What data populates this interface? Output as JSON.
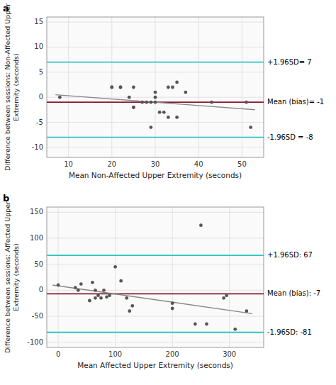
{
  "chart_data": [
    {
      "type": "scatter",
      "title": "a",
      "xlabel": "Mean Non-Affected Upper Extremity (seconds)",
      "ylabel": "Difference between sessions: Non-Affected Upper\nExtremity (seconds)",
      "series": [
        {
          "type": "scatter",
          "color": "#555555",
          "x": [
            8,
            20,
            20,
            22,
            22,
            24,
            25,
            25,
            25,
            27,
            28,
            29,
            29,
            30,
            30,
            30,
            31,
            32,
            33,
            33,
            34,
            35,
            35,
            37,
            43,
            51,
            52
          ],
          "values": [
            0,
            2,
            2,
            2,
            2,
            0,
            -2,
            -2,
            2,
            -1,
            -1,
            -6,
            -1,
            -1,
            1,
            0,
            -3,
            -3,
            2,
            -4,
            2,
            -4,
            3,
            1,
            -1,
            -1,
            -6
          ]
        },
        {
          "type": "line",
          "color": "#888888",
          "x": [
            7,
            53
          ],
          "values": [
            0.5,
            -2.5
          ]
        }
      ],
      "annotations": [
        {
          "text": "+1.96SD= 7",
          "value": 7,
          "color": "#2DC5C5"
        },
        {
          "text": "Mean (bias)= -1",
          "value": -1,
          "color": "#8B1A2E"
        },
        {
          "text": "-1.96SD = -8",
          "value": -8,
          "color": "#2DC5C5"
        }
      ],
      "xlim": [
        5,
        55
      ],
      "ylim": [
        -12,
        16
      ],
      "xticks": [
        10,
        20,
        30,
        40,
        50
      ],
      "yticks": [
        -10,
        -5,
        0,
        5,
        10,
        15
      ],
      "grid": true
    },
    {
      "type": "scatter",
      "title": "b",
      "xlabel": "Mean Affected Upper Extremity (seconds)",
      "ylabel": "Difference between sessions: Affected Upper\nExtremity (seconds)",
      "series": [
        {
          "type": "scatter",
          "color": "#555555",
          "x": [
            0,
            30,
            35,
            40,
            55,
            60,
            65,
            65,
            70,
            75,
            80,
            85,
            90,
            100,
            110,
            120,
            125,
            130,
            200,
            200,
            240,
            250,
            260,
            290,
            295,
            310,
            330
          ],
          "values": [
            10,
            5,
            0,
            12,
            -20,
            15,
            -15,
            0,
            -10,
            -15,
            0,
            -13,
            -10,
            45,
            18,
            -15,
            -40,
            -30,
            -25,
            -35,
            -65,
            125,
            -65,
            -15,
            -10,
            -75,
            -40
          ]
        },
        {
          "type": "line",
          "color": "#888888",
          "x": [
            -10,
            340
          ],
          "values": [
            10,
            -45
          ]
        }
      ],
      "annotations": [
        {
          "text": "+1.96SD: 67",
          "value": 67,
          "color": "#2DC5C5"
        },
        {
          "text": "Mean (bias): -7",
          "value": -7,
          "color": "#8B1A2E"
        },
        {
          "text": "-1.96SD: -81",
          "value": -81,
          "color": "#2DC5C5"
        }
      ],
      "xlim": [
        -20,
        360
      ],
      "ylim": [
        -110,
        160
      ],
      "xticks": [
        0,
        100,
        200,
        300
      ],
      "yticks": [
        -100,
        -50,
        0,
        50,
        100,
        150
      ],
      "grid": true
    }
  ]
}
